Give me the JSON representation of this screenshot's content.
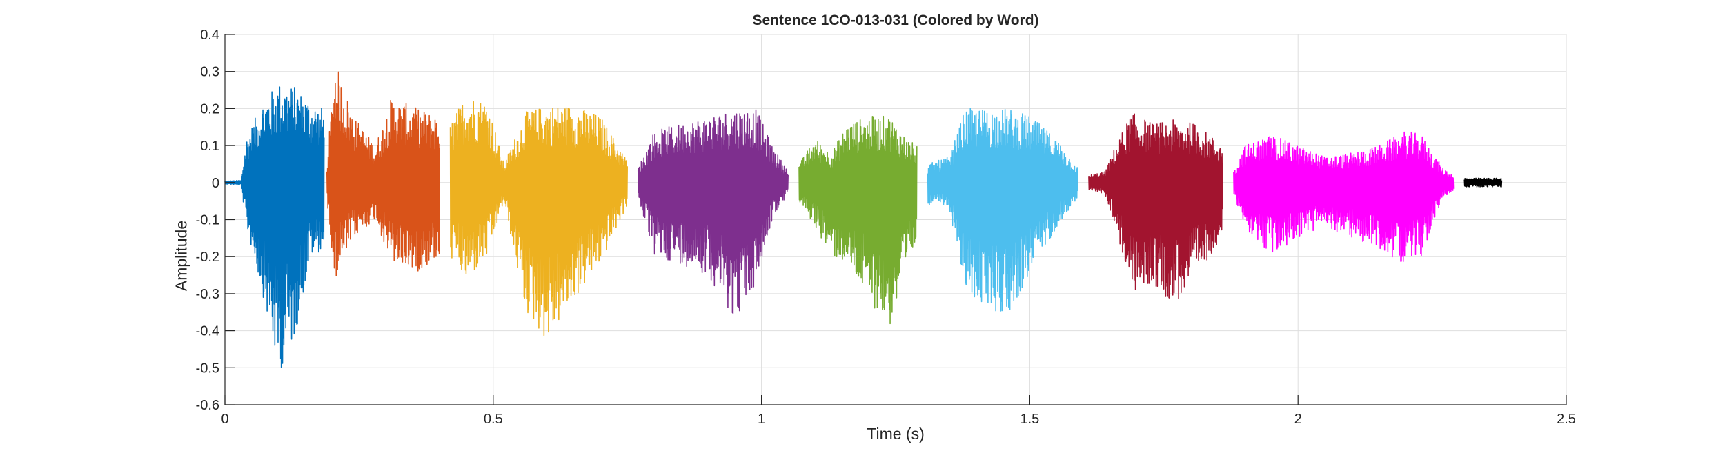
{
  "chart_data": {
    "type": "line",
    "title": "Sentence 1CO-013-031 (Colored by Word)",
    "xlabel": "Time (s)",
    "ylabel": "Amplitude",
    "xlim": [
      0,
      2.5
    ],
    "ylim": [
      -0.6,
      0.4
    ],
    "xticks": [
      0,
      0.5,
      1,
      1.5,
      2,
      2.5
    ],
    "xtick_labels": [
      "0",
      "0.5",
      "1",
      "1.5",
      "2",
      "2.5"
    ],
    "yticks": [
      -0.6,
      -0.5,
      -0.4,
      -0.3,
      -0.2,
      -0.1,
      0,
      0.1,
      0.2,
      0.3,
      0.4
    ],
    "ytick_labels": [
      "-0.6",
      "-0.5",
      "-0.4",
      "-0.3",
      "-0.2",
      "-0.1",
      "0",
      "0.1",
      "0.2",
      "0.3",
      "0.4"
    ],
    "grid": true,
    "series": [
      {
        "color": "#0072BD",
        "start": 0.0,
        "end": 0.185,
        "envelope": [
          [
            0.0,
            0.004,
            -0.004
          ],
          [
            0.03,
            0.006,
            -0.006
          ],
          [
            0.04,
            0.12,
            -0.12
          ],
          [
            0.07,
            0.22,
            -0.3
          ],
          [
            0.1,
            0.27,
            -0.52
          ],
          [
            0.13,
            0.26,
            -0.42
          ],
          [
            0.16,
            0.22,
            -0.2
          ],
          [
            0.185,
            0.2,
            -0.18
          ]
        ]
      },
      {
        "color": "#D95319",
        "start": 0.19,
        "end": 0.4,
        "envelope": [
          [
            0.19,
            0.05,
            -0.05
          ],
          [
            0.205,
            0.33,
            -0.26
          ],
          [
            0.24,
            0.18,
            -0.15
          ],
          [
            0.28,
            0.1,
            -0.1
          ],
          [
            0.31,
            0.23,
            -0.22
          ],
          [
            0.36,
            0.2,
            -0.24
          ],
          [
            0.4,
            0.18,
            -0.2
          ]
        ]
      },
      {
        "color": "#EDB120",
        "start": 0.42,
        "end": 0.75,
        "envelope": [
          [
            0.42,
            0.16,
            -0.2
          ],
          [
            0.45,
            0.24,
            -0.27
          ],
          [
            0.49,
            0.22,
            -0.2
          ],
          [
            0.52,
            0.05,
            -0.05
          ],
          [
            0.56,
            0.19,
            -0.35
          ],
          [
            0.6,
            0.21,
            -0.43
          ],
          [
            0.65,
            0.21,
            -0.32
          ],
          [
            0.7,
            0.18,
            -0.22
          ],
          [
            0.75,
            0.06,
            -0.06
          ]
        ]
      },
      {
        "color": "#7E2F8E",
        "start": 0.77,
        "end": 1.05,
        "envelope": [
          [
            0.77,
            0.04,
            -0.04
          ],
          [
            0.8,
            0.14,
            -0.2
          ],
          [
            0.85,
            0.16,
            -0.22
          ],
          [
            0.9,
            0.18,
            -0.25
          ],
          [
            0.95,
            0.2,
            -0.37
          ],
          [
            0.99,
            0.2,
            -0.28
          ],
          [
            1.02,
            0.1,
            -0.1
          ],
          [
            1.05,
            0.03,
            -0.03
          ]
        ]
      },
      {
        "color": "#77AC30",
        "start": 1.07,
        "end": 1.29,
        "envelope": [
          [
            1.07,
            0.05,
            -0.05
          ],
          [
            1.1,
            0.12,
            -0.12
          ],
          [
            1.13,
            0.08,
            -0.2
          ],
          [
            1.16,
            0.16,
            -0.22
          ],
          [
            1.2,
            0.18,
            -0.32
          ],
          [
            1.24,
            0.18,
            -0.39
          ],
          [
            1.27,
            0.12,
            -0.25
          ],
          [
            1.29,
            0.1,
            -0.15
          ]
        ]
      },
      {
        "color": "#4DBEEE",
        "start": 1.31,
        "end": 1.59,
        "envelope": [
          [
            1.31,
            0.05,
            -0.06
          ],
          [
            1.35,
            0.07,
            -0.07
          ],
          [
            1.38,
            0.2,
            -0.3
          ],
          [
            1.42,
            0.2,
            -0.34
          ],
          [
            1.46,
            0.2,
            -0.36
          ],
          [
            1.5,
            0.18,
            -0.25
          ],
          [
            1.55,
            0.12,
            -0.12
          ],
          [
            1.59,
            0.04,
            -0.04
          ]
        ]
      },
      {
        "color": "#A2142F",
        "start": 1.61,
        "end": 1.86,
        "envelope": [
          [
            1.61,
            0.02,
            -0.02
          ],
          [
            1.64,
            0.03,
            -0.03
          ],
          [
            1.66,
            0.1,
            -0.12
          ],
          [
            1.69,
            0.19,
            -0.3
          ],
          [
            1.73,
            0.16,
            -0.28
          ],
          [
            1.77,
            0.17,
            -0.33
          ],
          [
            1.81,
            0.16,
            -0.26
          ],
          [
            1.86,
            0.1,
            -0.14
          ]
        ]
      },
      {
        "color": "#FF00FF",
        "start": 1.88,
        "end": 2.29,
        "envelope": [
          [
            1.88,
            0.03,
            -0.03
          ],
          [
            1.9,
            0.1,
            -0.12
          ],
          [
            1.95,
            0.13,
            -0.2
          ],
          [
            2.0,
            0.1,
            -0.15
          ],
          [
            2.05,
            0.07,
            -0.12
          ],
          [
            2.1,
            0.08,
            -0.15
          ],
          [
            2.15,
            0.1,
            -0.18
          ],
          [
            2.2,
            0.14,
            -0.22
          ],
          [
            2.23,
            0.13,
            -0.2
          ],
          [
            2.27,
            0.04,
            -0.04
          ],
          [
            2.29,
            0.02,
            -0.02
          ]
        ]
      },
      {
        "color": "#000000",
        "start": 2.31,
        "end": 2.38,
        "envelope": [
          [
            2.31,
            0.012,
            -0.012
          ],
          [
            2.38,
            0.012,
            -0.012
          ]
        ]
      }
    ]
  }
}
